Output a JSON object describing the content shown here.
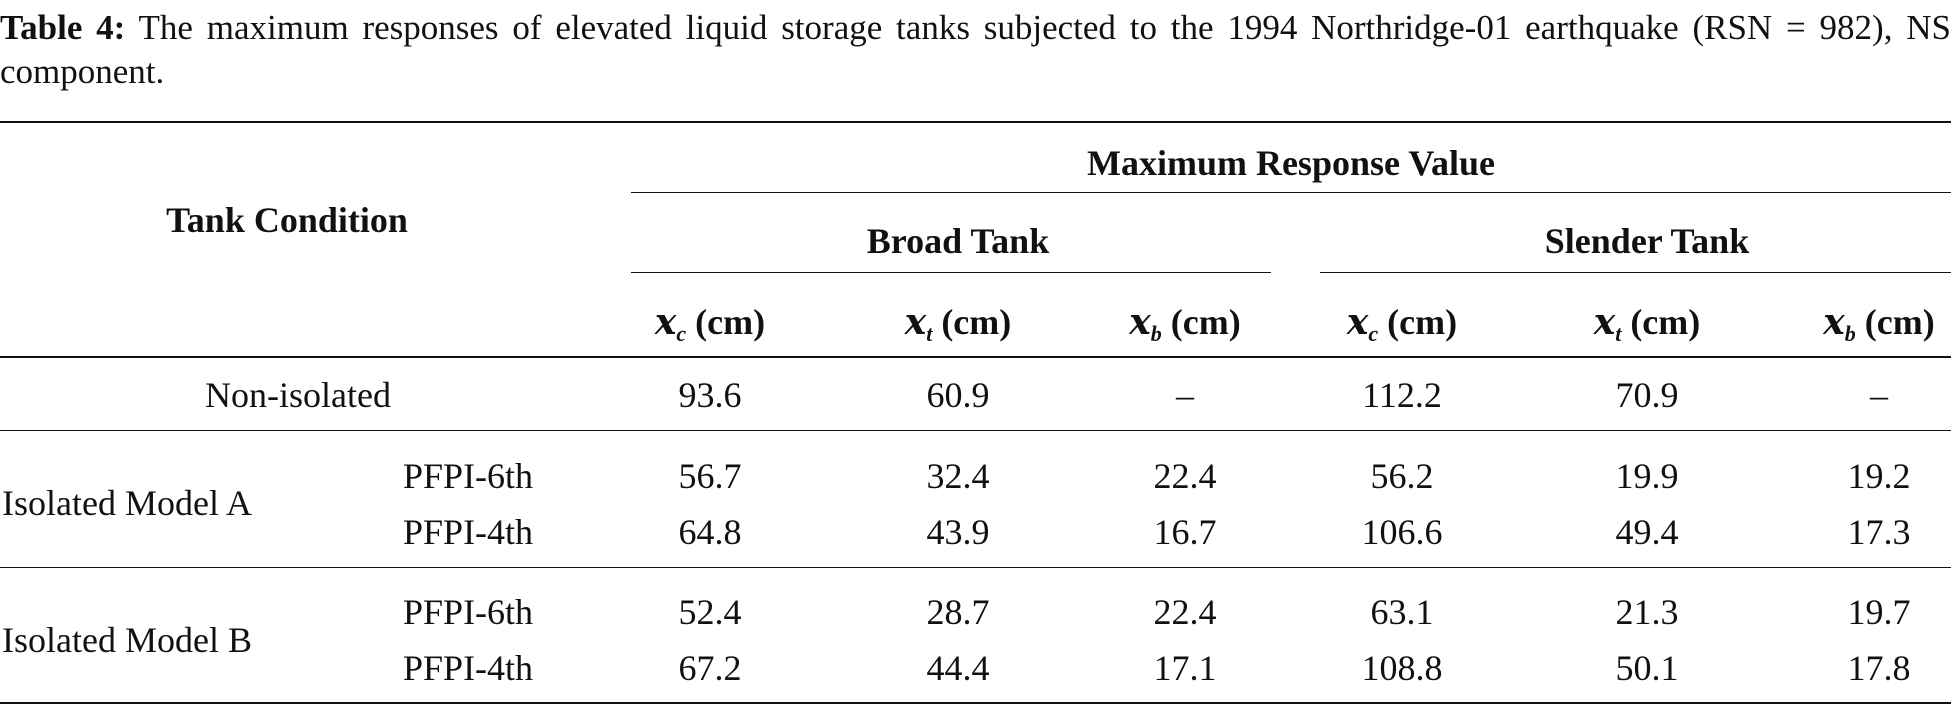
{
  "caption": {
    "label": "Table 4:",
    "text": "The maximum responses of elevated liquid storage tanks subjected to the 1994 Northridge-01 earthquake (RSN = 982), NS component."
  },
  "table": {
    "header": {
      "tank_condition": "Tank Condition",
      "max_response": "Maximum Response Value",
      "broad": "Broad Tank",
      "slender": "Slender Tank",
      "columns": [
        {
          "var": "x",
          "sub": "c",
          "unit": "(cm)"
        },
        {
          "var": "x",
          "sub": "t",
          "unit": "(cm)"
        },
        {
          "var": "x",
          "sub": "b",
          "unit": "(cm)"
        },
        {
          "var": "x",
          "sub": "c",
          "unit": "(cm)"
        },
        {
          "var": "x",
          "sub": "t",
          "unit": "(cm)"
        },
        {
          "var": "x",
          "sub": "b",
          "unit": "(cm)"
        }
      ]
    },
    "rows": {
      "non_isolated": {
        "label": "Non-isolated",
        "values": [
          "93.6",
          "60.9",
          "–",
          "112.2",
          "70.9",
          "–"
        ]
      },
      "model_a": {
        "label": "Isolated Model A",
        "sub": [
          {
            "name": "PFPI-6th",
            "values": [
              "56.7",
              "32.4",
              "22.4",
              "56.2",
              "19.9",
              "19.2"
            ]
          },
          {
            "name": "PFPI-4th",
            "values": [
              "64.8",
              "43.9",
              "16.7",
              "106.6",
              "49.4",
              "17.3"
            ]
          }
        ]
      },
      "model_b": {
        "label": "Isolated Model B",
        "sub": [
          {
            "name": "PFPI-6th",
            "values": [
              "52.4",
              "28.7",
              "22.4",
              "63.1",
              "21.3",
              "19.7"
            ]
          },
          {
            "name": "PFPI-4th",
            "values": [
              "67.2",
              "44.4",
              "17.1",
              "108.8",
              "50.1",
              "17.8"
            ]
          }
        ]
      }
    }
  }
}
